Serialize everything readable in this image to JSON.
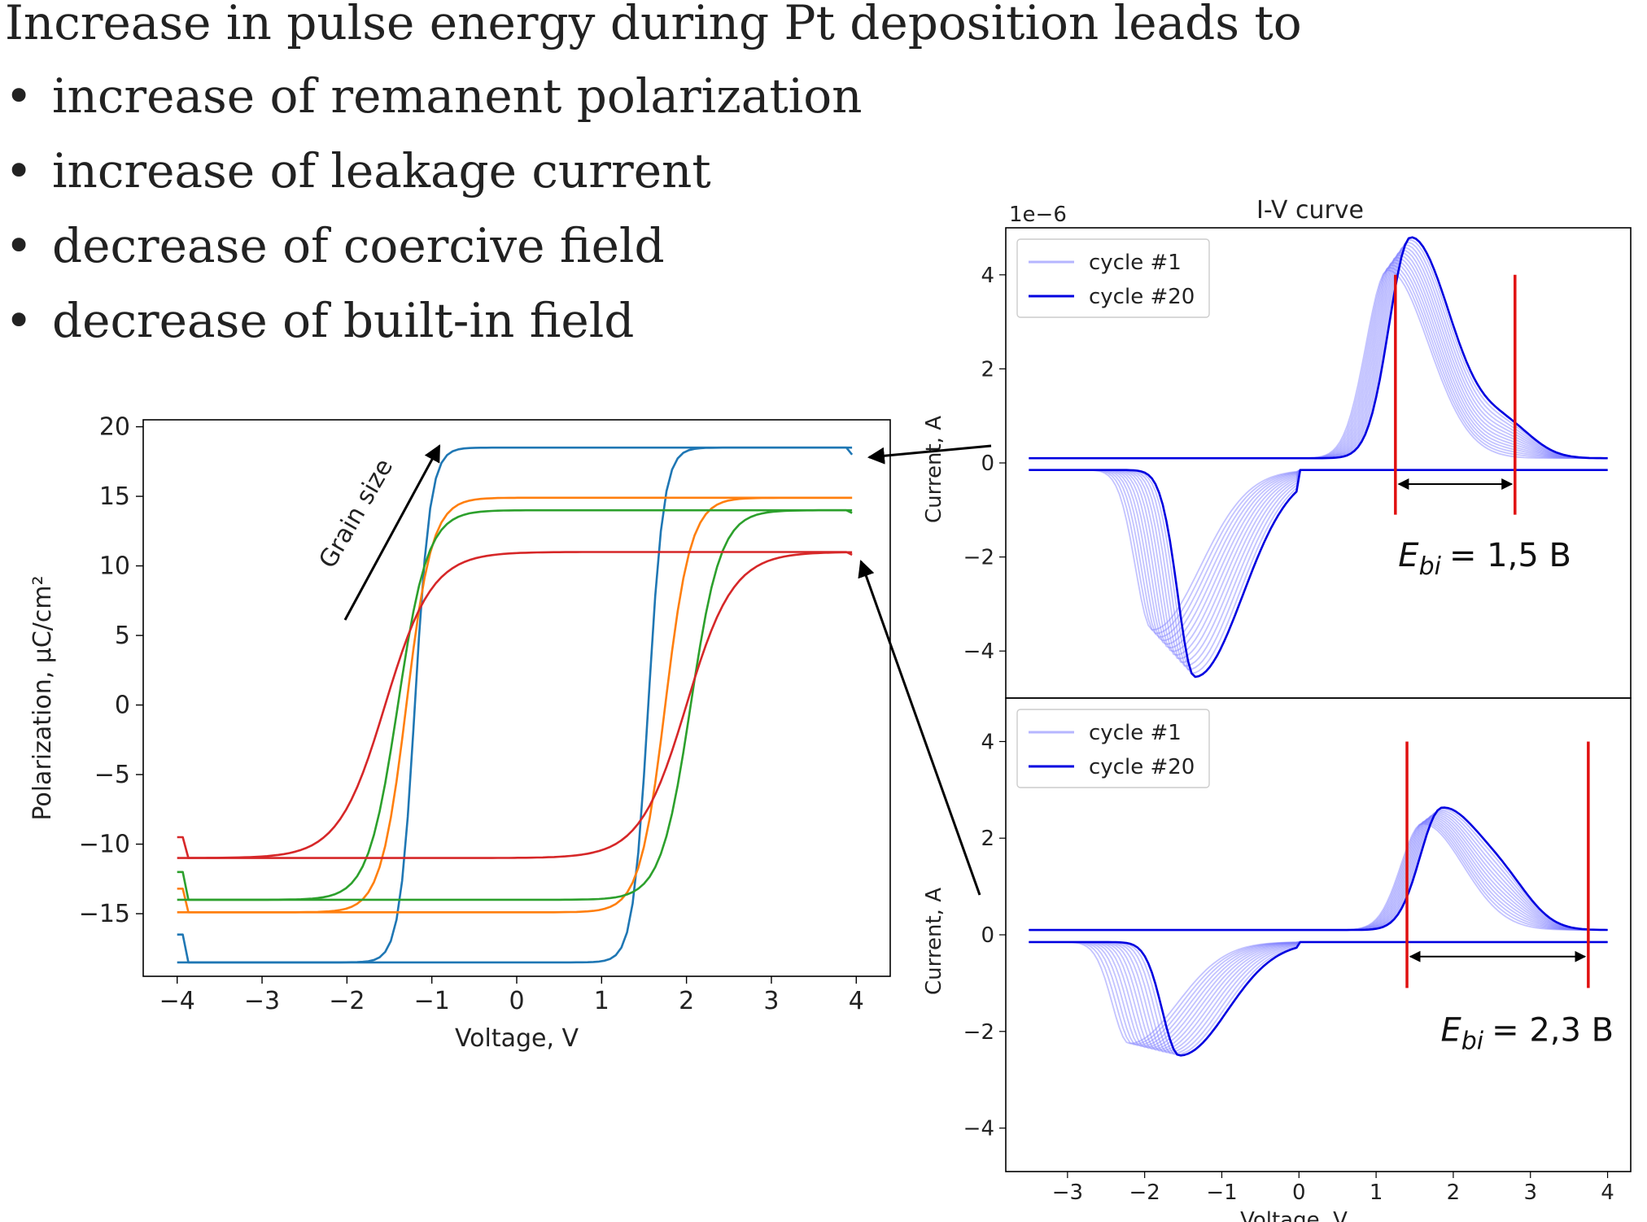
{
  "slide": {
    "title": "Increase in pulse energy during Pt deposition leads to",
    "bullets": [
      "increase of remanent polarization",
      "increase of leakage current",
      "decrease of coercive field",
      "decrease of built-in field"
    ]
  },
  "chart_data": [
    {
      "type": "line",
      "title": "",
      "xlabel": "Voltage, V",
      "ylabel": "Polarization, μC/cm²",
      "xlim": [
        -4.4,
        4.4
      ],
      "ylim": [
        -19.5,
        20.5
      ],
      "xticks": [
        "−4",
        "−3",
        "−2",
        "−1",
        "0",
        "1",
        "2",
        "3",
        "4"
      ],
      "yticks": [
        "−15",
        "−10",
        "−5",
        "0",
        "5",
        "10",
        "15",
        "20"
      ],
      "annotation": "Grain size",
      "grid": false,
      "series": [
        {
          "color": "#1f77b4",
          "Pmax": 18.5,
          "Ec_pos": 1.55,
          "Ec_neg": -1.2,
          "width": 0.18,
          "Pend_top": 18.0,
          "Pend_bot": -16.5
        },
        {
          "color": "#ff7f0e",
          "Pmax": 14.9,
          "Ec_pos": 1.75,
          "Ec_neg": -1.3,
          "width": 0.3,
          "Pend_top": 14.9,
          "Pend_bot": -13.2
        },
        {
          "color": "#2ca02c",
          "Pmax": 14.0,
          "Ec_pos": 2.05,
          "Ec_neg": -1.4,
          "width": 0.35,
          "Pend_top": 13.8,
          "Pend_bot": -12.0
        },
        {
          "color": "#d62728",
          "Pmax": 11.0,
          "Ec_pos": 2.0,
          "Ec_neg": -1.55,
          "width": 0.55,
          "Pend_top": 10.8,
          "Pend_bot": -9.5
        }
      ]
    },
    {
      "type": "line",
      "title": "I-V curve",
      "offset_label": "1e−6",
      "xlabel": "",
      "ylabel": "Current, A",
      "xlim": [
        -3.8,
        4.3
      ],
      "ylim": [
        -5.0,
        5.0
      ],
      "yticks": [
        "−4",
        "−2",
        "0",
        "2",
        "4"
      ],
      "legend": {
        "position": "top-left",
        "entries": [
          "cycle #1",
          "cycle #20"
        ]
      },
      "series": [
        {
          "name": "cycle #1",
          "color": "#7a7aff",
          "pos_peak_x": 1.15,
          "pos_peak_y": 4.0,
          "neg_peak_x": -1.9,
          "neg_peak_y": -3.4
        },
        {
          "name": "cycle #20",
          "color": "#0000e0",
          "pos_peak_x": 1.45,
          "pos_peak_y": 4.7,
          "neg_peak_x": -1.35,
          "neg_peak_y": -4.4
        }
      ],
      "markers": {
        "v1": 1.25,
        "v2": 2.8,
        "label": "E_bi = 1,5 В",
        "sub": "bi",
        "value_text": "= 1,5 В"
      }
    },
    {
      "type": "line",
      "title": "",
      "xlabel": "Voltage, V",
      "ylabel": "Current, A",
      "xlim": [
        -3.8,
        4.3
      ],
      "ylim": [
        -4.9,
        4.9
      ],
      "xticks": [
        "−3",
        "−2",
        "−1",
        "0",
        "1",
        "2",
        "3",
        "4"
      ],
      "yticks": [
        "−4",
        "−2",
        "0",
        "2",
        "4"
      ],
      "legend": {
        "position": "top-left",
        "entries": [
          "cycle #1",
          "cycle #20"
        ]
      },
      "series": [
        {
          "name": "cycle #1",
          "color": "#7a7aff",
          "pos_peak_x": 1.6,
          "pos_peak_y": 2.2,
          "neg_peak_x": -2.2,
          "neg_peak_y": -2.1
        },
        {
          "name": "cycle #20",
          "color": "#0000e0",
          "pos_peak_x": 1.85,
          "pos_peak_y": 2.5,
          "neg_peak_x": -1.55,
          "neg_peak_y": -2.35
        }
      ],
      "markers": {
        "v1": 1.4,
        "v2": 3.75,
        "label": "E_bi = 2,3 В",
        "sub": "bi",
        "value_text": "= 2,3 В"
      }
    }
  ]
}
